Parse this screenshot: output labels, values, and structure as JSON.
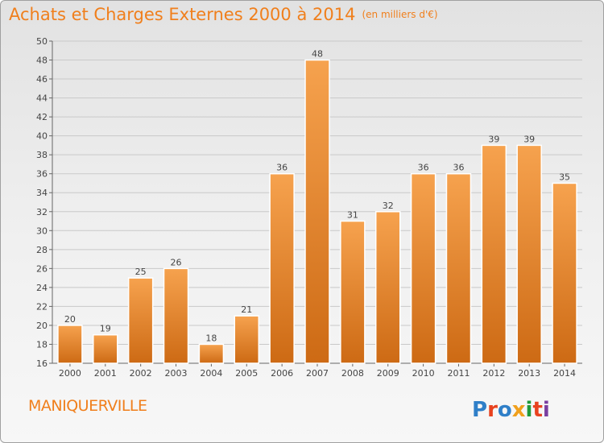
{
  "header": {
    "title": "Achats et Charges Externes 2000 à 2014",
    "unit_note": "(en milliers d'€)"
  },
  "footer": {
    "commune": "MANIQUERVILLE",
    "brand": "Proxiti",
    "brand_colors": [
      "#2f7fc8",
      "#e8421f",
      "#2f7fc8",
      "#f0a01c",
      "#1f9a3a",
      "#e8421f",
      "#7a3fa0"
    ]
  },
  "colors": {
    "accent": "#f07f1c",
    "bar_light": "#f6a24e",
    "bar_dark": "#cd6a14"
  },
  "chart_data": {
    "type": "bar",
    "title": "Achats et Charges Externes 2000 à 2014",
    "subtitle": "(en milliers d'€)",
    "categories": [
      "2000",
      "2001",
      "2002",
      "2003",
      "2004",
      "2005",
      "2006",
      "2007",
      "2008",
      "2009",
      "2010",
      "2011",
      "2012",
      "2013",
      "2014"
    ],
    "values": [
      20,
      19,
      25,
      26,
      18,
      21,
      36,
      48,
      31,
      32,
      36,
      36,
      39,
      39,
      35
    ],
    "ylim": [
      16,
      50
    ],
    "yticks": [
      16,
      18,
      20,
      22,
      24,
      26,
      28,
      30,
      32,
      34,
      36,
      38,
      40,
      42,
      44,
      46,
      48,
      50
    ],
    "grid": true,
    "data_labels": true
  }
}
